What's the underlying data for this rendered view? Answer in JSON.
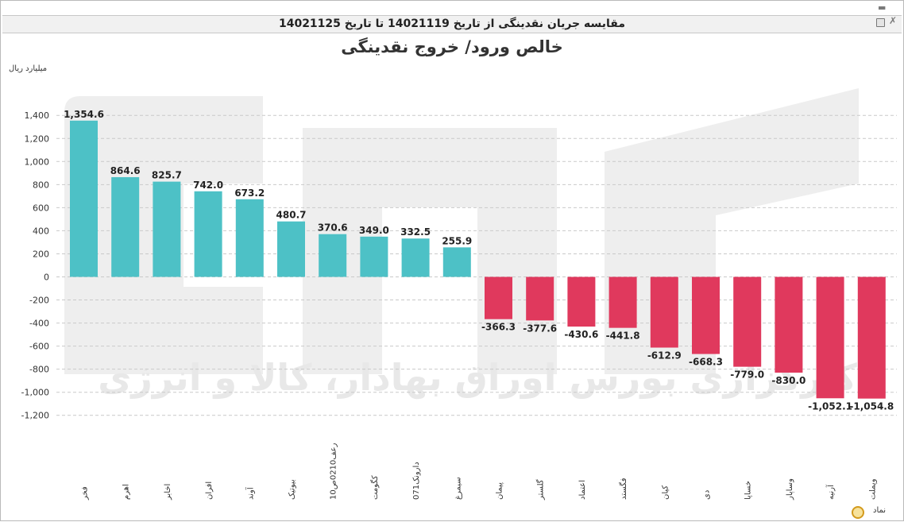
{
  "header": {
    "title": "مقایسه جریان نقدینگی از تاریخ 14021119 تا تاریخ 14021125",
    "minimize_icon": "minimize-icon",
    "save_icon": "save-icon",
    "close_icon": "close-icon"
  },
  "footer": {
    "symbol_label": "نماد",
    "refresh_icon": "refresh-icon"
  },
  "chart_data": {
    "type": "bar",
    "title": "خالص ورود/ خروج نقدینگی",
    "ylabel": "میلیارد ریال",
    "xlabel": "نماد",
    "ylim": [
      -1300,
      1500
    ],
    "yticks": [
      1400,
      1200,
      1000,
      800,
      600,
      400,
      200,
      0,
      -200,
      -400,
      -600,
      -800,
      -1000,
      -1200
    ],
    "ytick_labels": [
      "1,400",
      "1,200",
      "1,000",
      "800",
      "600",
      "400",
      "200",
      "0",
      "-200",
      "-400",
      "-600",
      "-800",
      "-1,000",
      "-1,200"
    ],
    "grid": true,
    "categories": [
      "فخر",
      "اهرم",
      "اخابر",
      "افران",
      "آوند",
      "بیوتیک",
      "رعف0210ص10",
      "کگومت",
      "دارونک071",
      "سیمرغ",
      "پیمان",
      "گلستر",
      "اعتماد",
      "فگستد",
      "کیان",
      "دی",
      "خساپا",
      "وساپار",
      "آرنیه",
      "وپملت"
    ],
    "values": [
      1354.6,
      864.6,
      825.7,
      742.0,
      673.2,
      480.7,
      370.6,
      349.0,
      332.5,
      255.9,
      -366.3,
      -377.6,
      -430.6,
      -441.8,
      -612.9,
      -668.3,
      -779.0,
      -830.0,
      -1052.1,
      -1054.8
    ],
    "value_labels": [
      "1,354.6",
      "864.6",
      "825.7",
      "742.0",
      "673.2",
      "480.7",
      "370.6",
      "349.0",
      "332.5",
      "255.9",
      "-366.3",
      "-377.6",
      "-430.6",
      "-441.8",
      "-612.9",
      "-668.3",
      "-779.0",
      "-830.0",
      "-1,052.1",
      "-1,054.8"
    ],
    "colors": {
      "positive": "#4dc1c6",
      "negative": "#e0395d",
      "grid": "#c9c9c9"
    },
    "watermark": "کارگزاری بورس اوراق بهادار، کالا و انرژی"
  }
}
